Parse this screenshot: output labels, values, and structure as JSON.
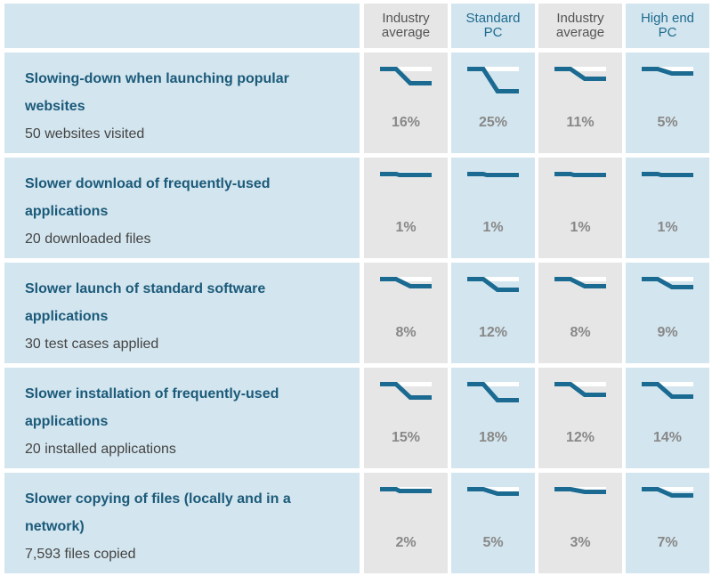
{
  "headers": [
    {
      "line1": "Industry",
      "line2": "average"
    },
    {
      "line1": "Standard",
      "line2": "PC"
    },
    {
      "line1": "Industry",
      "line2": "average"
    },
    {
      "line1": "High end",
      "line2": "PC"
    }
  ],
  "colors": {
    "blue_cell": "#d3e5ee",
    "gray_cell": "#e6e6e6",
    "line": "#1a6a92",
    "title_text": "#1b5a7a",
    "percent_text": "#888888"
  },
  "chart_data": {
    "type": "table",
    "series_names": [
      "Industry average",
      "Standard PC",
      "Industry average",
      "High end PC"
    ],
    "unit": "%",
    "rows": [
      {
        "title": "Slowing-down when launching popular websites",
        "subtitle": "50 websites visited",
        "values": [
          16,
          25,
          11,
          5
        ],
        "labels": [
          "16%",
          "25%",
          "11%",
          "5%"
        ]
      },
      {
        "title": "Slower download of frequently-used applications",
        "subtitle": "20 downloaded files",
        "values": [
          1,
          1,
          1,
          1
        ],
        "labels": [
          "1%",
          "1%",
          "1%",
          "1%"
        ]
      },
      {
        "title": "Slower launch of standard software applications",
        "subtitle": "30 test cases applied",
        "values": [
          8,
          12,
          8,
          9
        ],
        "labels": [
          "8%",
          "12%",
          "8%",
          "9%"
        ]
      },
      {
        "title": "Slower installation of frequently-used applications",
        "subtitle": "20 installed applications",
        "values": [
          15,
          18,
          12,
          14
        ],
        "labels": [
          "15%",
          "18%",
          "12%",
          "14%"
        ]
      },
      {
        "title": "Slower copying of files (locally and in a network)",
        "subtitle": "7,593 files copied",
        "values": [
          2,
          5,
          3,
          7
        ],
        "labels": [
          "2%",
          "5%",
          "3%",
          "7%"
        ]
      }
    ]
  }
}
